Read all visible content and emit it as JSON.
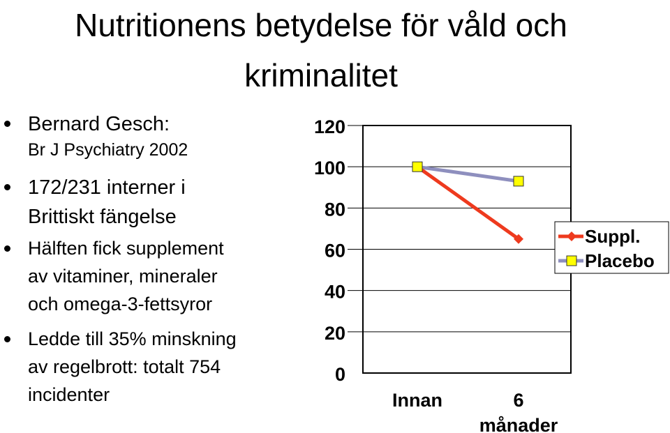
{
  "slide": {
    "title": "Nutritionens betydelse för våld och kriminalitet",
    "bullets": [
      {
        "lines": [
          "Bernard Gesch:"
        ],
        "sub": "Br J Psychiatry 2002"
      },
      {
        "lines": [
          "172/231 interner i",
          "Brittiskt fängelse"
        ]
      },
      {
        "lines": [
          "Hälften fick supplement",
          "av vitaminer, mineraler",
          "och omega-3-fettsyror"
        ]
      },
      {
        "lines": [
          "Ledde till 35% minskning",
          "av regelbrott: totalt 754",
          "incidenter"
        ]
      }
    ]
  },
  "chart_data": {
    "type": "line",
    "categories": [
      "Innan",
      "6 månader"
    ],
    "series": [
      {
        "name": "Suppl.",
        "values": [
          100,
          65
        ],
        "color": "#ee3a1e",
        "marker": "diamond"
      },
      {
        "name": "Placebo",
        "values": [
          100,
          93
        ],
        "color": "#8e8fbe",
        "marker": "square",
        "marker_color": "#ffff00"
      }
    ],
    "yticks": [
      0,
      20,
      40,
      60,
      80,
      100,
      120
    ],
    "ylim": [
      0,
      120
    ],
    "grid": "horizontal",
    "legend_position": "right"
  }
}
